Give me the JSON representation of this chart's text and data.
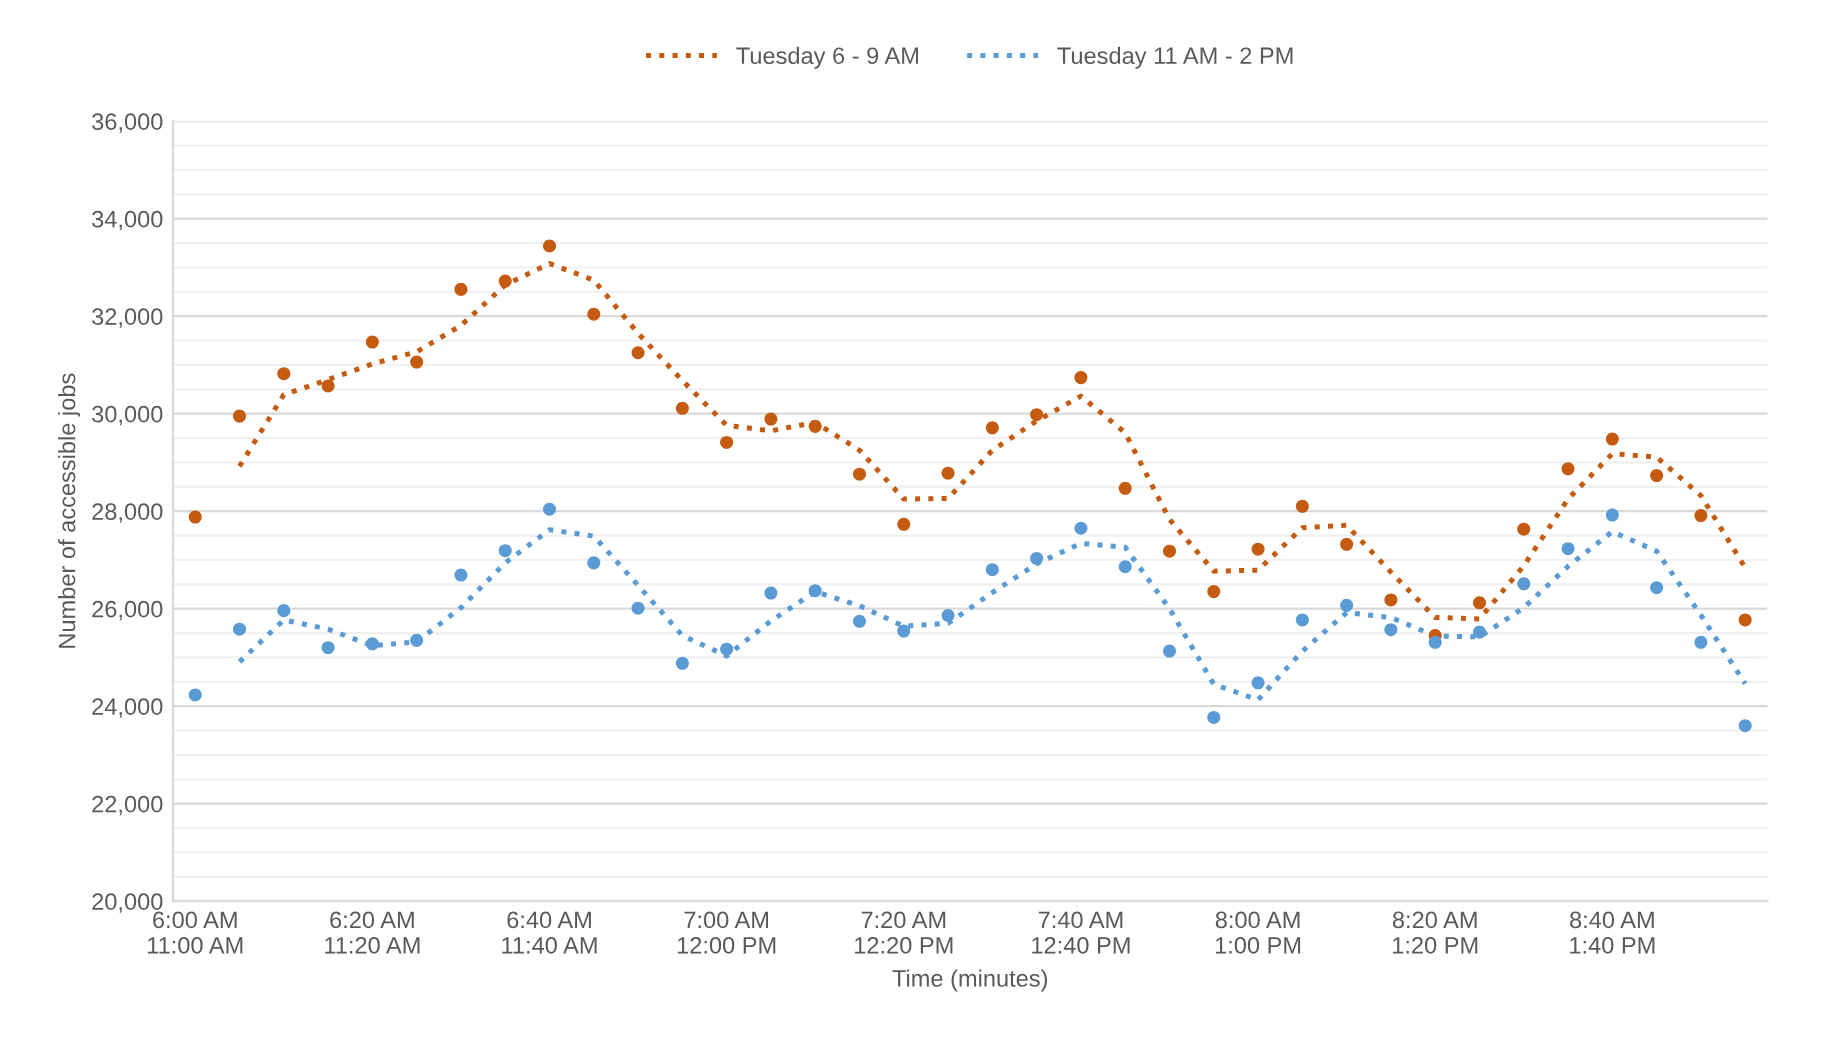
{
  "chart_data": {
    "type": "scatter",
    "xlabel": "Time (minutes)",
    "ylabel": "Number of accessible jobs",
    "categories": [
      "6:00 AM\n11:00 AM",
      null,
      null,
      null,
      "6:20 AM\n11:20 AM",
      null,
      null,
      null,
      "6:40 AM\n11:40 AM",
      null,
      null,
      null,
      "7:00 AM\n12:00 PM",
      null,
      null,
      null,
      "7:20 AM\n12:20 PM",
      null,
      null,
      null,
      "7:40 AM\n12:40 PM",
      null,
      null,
      null,
      "8:00 AM\n1:00 PM",
      null,
      null,
      null,
      "8:20 AM\n1:20 PM",
      null,
      null,
      null,
      "8:40 AM\n1:40 PM",
      null,
      null,
      null
    ],
    "series": [
      {
        "marker": "circle",
        "color": "#c55a11",
        "values": [
          27880,
          29950,
          30820,
          30570,
          31470,
          31060,
          32550,
          32720,
          33440,
          32040,
          31250,
          30110,
          29410,
          29890,
          29740,
          28760,
          27730,
          28780,
          29710,
          29980,
          30740,
          28470,
          27180,
          26350,
          27220,
          28100,
          27320,
          26180,
          25450,
          26120,
          27630,
          28870,
          29480,
          28730,
          27910,
          25770
        ]
      },
      {
        "marker": "circle",
        "color": "#5b9bd5",
        "values": [
          24230,
          25580,
          25960,
          25200,
          25280,
          25350,
          26690,
          27190,
          28040,
          26940,
          26010,
          24880,
          25170,
          26320,
          26370,
          25740,
          25540,
          25860,
          26800,
          27030,
          27650,
          26860,
          25130,
          23770,
          24480,
          25770,
          26070,
          25570,
          25310,
          25520,
          26510,
          27230,
          27920,
          26430,
          25310,
          23600
        ]
      },
      {
        "type": "line",
        "name": "Tuesday 6 - 9 AM",
        "line_style": "dotted",
        "color": "#c55a11",
        "values": [
          null,
          28920,
          30390,
          30700,
          31020,
          31270,
          31810,
          32640,
          33080,
          32740,
          31650,
          30680,
          29760,
          29650,
          29820,
          29250,
          28250,
          28260,
          29250,
          29850,
          30360,
          29610,
          27830,
          26770,
          26790,
          27660,
          27710,
          26750,
          25820,
          25790,
          26880,
          28250,
          29180,
          29110,
          28320,
          26840
        ]
      },
      {
        "type": "line",
        "name": "Tuesday 11 AM - 2 PM",
        "line_style": "dotted",
        "color": "#5b9bd5",
        "values": [
          null,
          24910,
          25770,
          25580,
          25240,
          25320,
          26020,
          26940,
          27620,
          27490,
          26480,
          25450,
          25030,
          25750,
          26350,
          26060,
          25640,
          25700,
          26330,
          26920,
          27340,
          27260,
          26000,
          24450,
          24130,
          25130,
          25920,
          25820,
          25440,
          25420,
          26020,
          26870,
          27580,
          27180,
          25870,
          24460
        ]
      }
    ],
    "ylim": [
      20000,
      36000
    ],
    "yticks": [
      {
        "value": 20000,
        "label": "20,000"
      },
      {
        "value": 20500,
        "label": null
      },
      {
        "value": 21000,
        "label": null
      },
      {
        "value": 21500,
        "label": null
      },
      {
        "value": 22000,
        "label": "22,000"
      },
      {
        "value": 22500,
        "label": null
      },
      {
        "value": 23000,
        "label": null
      },
      {
        "value": 23500,
        "label": null
      },
      {
        "value": 24000,
        "label": "24,000"
      },
      {
        "value": 24500,
        "label": null
      },
      {
        "value": 25000,
        "label": null
      },
      {
        "value": 25500,
        "label": null
      },
      {
        "value": 26000,
        "label": "26,000"
      },
      {
        "value": 26500,
        "label": null
      },
      {
        "value": 27000,
        "label": null
      },
      {
        "value": 27500,
        "label": null
      },
      {
        "value": 28000,
        "label": "28,000"
      },
      {
        "value": 28500,
        "label": null
      },
      {
        "value": 29000,
        "label": null
      },
      {
        "value": 29500,
        "label": null
      },
      {
        "value": 30000,
        "label": "30,000"
      },
      {
        "value": 30500,
        "label": null
      },
      {
        "value": 31000,
        "label": null
      },
      {
        "value": 31500,
        "label": null
      },
      {
        "value": 32000,
        "label": "32,000"
      },
      {
        "value": 32500,
        "label": null
      },
      {
        "value": 33000,
        "label": null
      },
      {
        "value": 33500,
        "label": null
      },
      {
        "value": 34000,
        "label": "34,000"
      },
      {
        "value": 34500,
        "label": null
      },
      {
        "value": 35000,
        "label": null
      },
      {
        "value": 35500,
        "label": null
      },
      {
        "value": 36000,
        "label": "36,000"
      }
    ],
    "grid": "y",
    "legend": "top"
  }
}
